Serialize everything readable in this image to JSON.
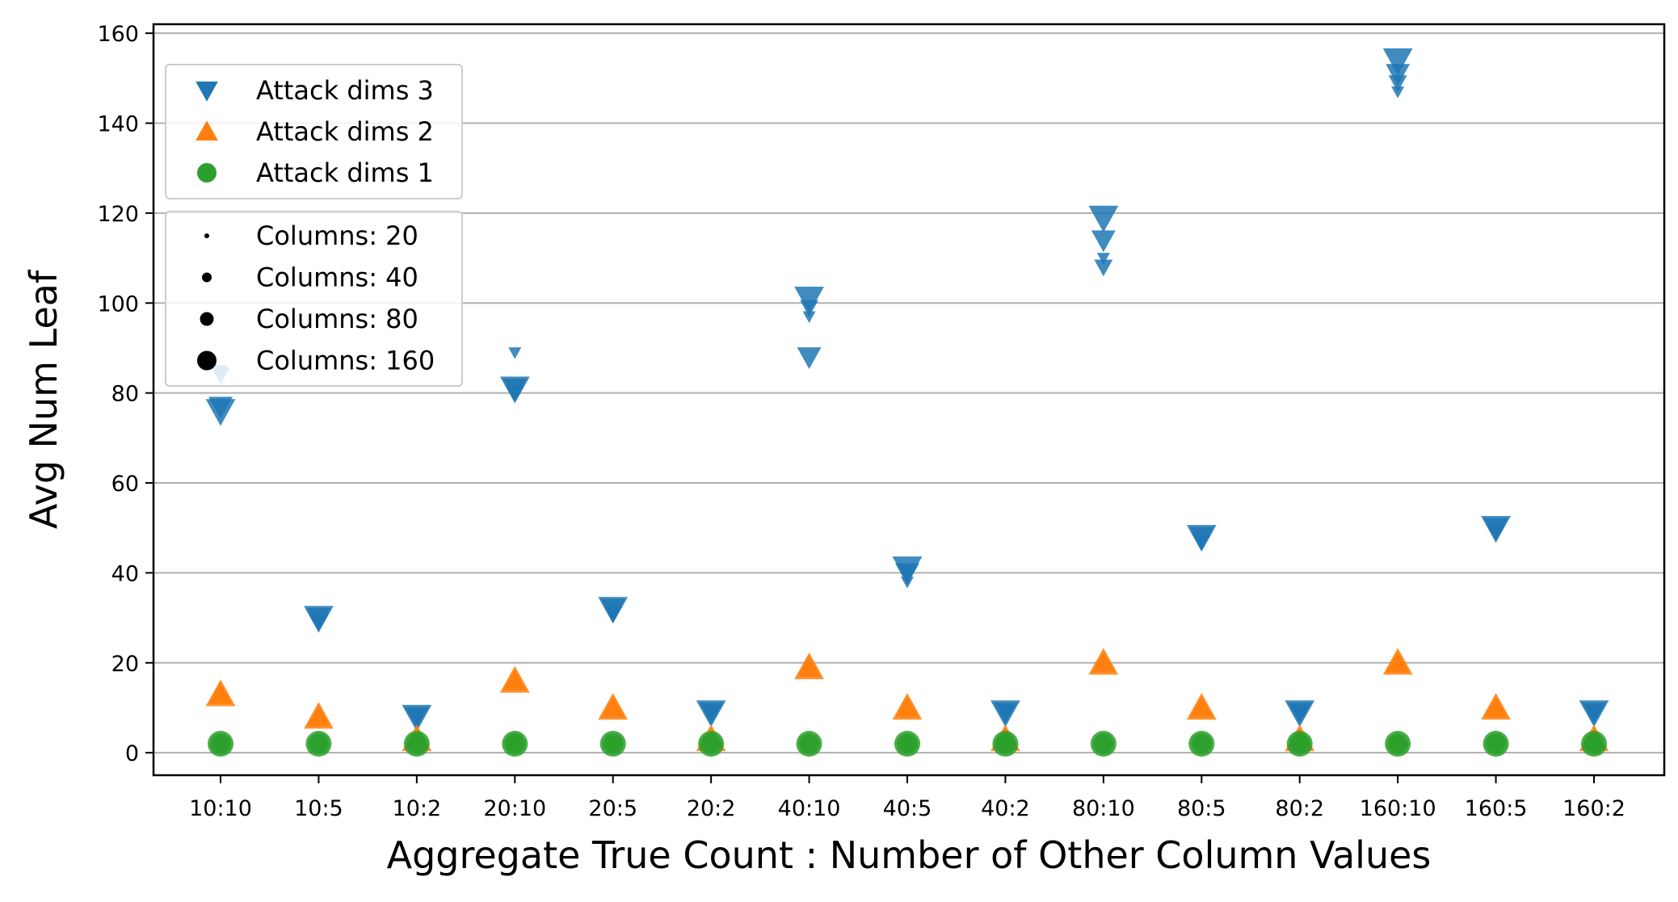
{
  "chart_data": {
    "type": "scatter",
    "title": "",
    "xlabel": "Aggregate True Count : Number of Other Column Values",
    "ylabel": "Avg Num Leaf",
    "categories": [
      "10:10",
      "10:5",
      "10:2",
      "20:10",
      "20:5",
      "20:2",
      "40:10",
      "40:5",
      "40:2",
      "80:10",
      "80:5",
      "80:2",
      "160:10",
      "160:5",
      "160:2"
    ],
    "ylim": [
      -5,
      162
    ],
    "yticks": [
      0,
      20,
      40,
      60,
      80,
      100,
      120,
      140,
      160
    ],
    "grid": "horizontal",
    "colors": {
      "attack_dims_3": "#1f77b4",
      "attack_dims_2": "#ff7f0e",
      "attack_dims_1": "#2ca02c",
      "size_legend": "#000000",
      "gridline": "#b0b0b0"
    },
    "legend": {
      "placement": "upper-left",
      "series_entries": [
        {
          "label": "Attack dims 3",
          "marker": "triangle-down",
          "color": "#1f77b4"
        },
        {
          "label": "Attack dims 2",
          "marker": "triangle-up",
          "color": "#ff7f0e"
        },
        {
          "label": "Attack dims 1",
          "marker": "circle",
          "color": "#2ca02c"
        }
      ],
      "size_entries": [
        {
          "label": "Columns: 20",
          "columns": 20
        },
        {
          "label": "Columns: 40",
          "columns": 40
        },
        {
          "label": "Columns: 80",
          "columns": 80
        },
        {
          "label": "Columns: 160",
          "columns": 160
        }
      ]
    },
    "series": [
      {
        "name": "Attack dims 3",
        "marker": "triangle-down",
        "color": "#1f77b4",
        "points": [
          [
            0,
            85,
            20
          ],
          [
            0,
            84,
            40
          ],
          [
            0,
            77,
            80
          ],
          [
            0,
            76,
            160
          ],
          [
            1,
            29,
            20
          ],
          [
            1,
            29,
            40
          ],
          [
            1,
            30,
            80
          ],
          [
            1,
            30,
            160
          ],
          [
            2,
            8,
            20
          ],
          [
            2,
            8,
            40
          ],
          [
            2,
            8,
            80
          ],
          [
            2,
            8,
            160
          ],
          [
            3,
            89,
            20
          ],
          [
            3,
            80,
            40
          ],
          [
            3,
            81,
            80
          ],
          [
            3,
            81,
            160
          ],
          [
            4,
            31,
            20
          ],
          [
            4,
            31,
            40
          ],
          [
            4,
            32,
            80
          ],
          [
            4,
            32,
            160
          ],
          [
            5,
            9,
            20
          ],
          [
            5,
            9,
            40
          ],
          [
            5,
            9,
            80
          ],
          [
            5,
            9,
            160
          ],
          [
            6,
            97,
            20
          ],
          [
            6,
            99,
            40
          ],
          [
            6,
            88,
            80
          ],
          [
            6,
            101,
            160
          ],
          [
            7,
            38,
            20
          ],
          [
            7,
            40,
            40
          ],
          [
            7,
            40,
            80
          ],
          [
            7,
            41,
            160
          ],
          [
            8,
            9,
            20
          ],
          [
            8,
            9,
            40
          ],
          [
            8,
            9,
            80
          ],
          [
            8,
            9,
            160
          ],
          [
            9,
            110,
            20
          ],
          [
            9,
            108,
            40
          ],
          [
            9,
            114,
            80
          ],
          [
            9,
            119,
            160
          ],
          [
            10,
            47,
            20
          ],
          [
            10,
            47,
            40
          ],
          [
            10,
            48,
            80
          ],
          [
            10,
            48,
            160
          ],
          [
            11,
            9,
            20
          ],
          [
            11,
            9,
            40
          ],
          [
            11,
            9,
            80
          ],
          [
            11,
            9,
            160
          ],
          [
            12,
            147,
            20
          ],
          [
            12,
            149,
            40
          ],
          [
            12,
            151,
            80
          ],
          [
            12,
            154,
            160
          ],
          [
            13,
            49,
            20
          ],
          [
            13,
            49,
            40
          ],
          [
            13,
            50,
            80
          ],
          [
            13,
            50,
            160
          ],
          [
            14,
            9,
            20
          ],
          [
            14,
            9,
            40
          ],
          [
            14,
            9,
            80
          ],
          [
            14,
            9,
            160
          ]
        ]
      },
      {
        "name": "Attack dims 2",
        "marker": "triangle-up",
        "color": "#ff7f0e",
        "points": [
          [
            0,
            13,
            20
          ],
          [
            0,
            13,
            40
          ],
          [
            0,
            13,
            80
          ],
          [
            0,
            13,
            160
          ],
          [
            1,
            8,
            20
          ],
          [
            1,
            8,
            40
          ],
          [
            1,
            8,
            80
          ],
          [
            1,
            8,
            160
          ],
          [
            2,
            3,
            20
          ],
          [
            2,
            3,
            40
          ],
          [
            2,
            3,
            80
          ],
          [
            2,
            3,
            160
          ],
          [
            3,
            16,
            20
          ],
          [
            3,
            16,
            40
          ],
          [
            3,
            16,
            80
          ],
          [
            3,
            16,
            160
          ],
          [
            4,
            10,
            20
          ],
          [
            4,
            10,
            40
          ],
          [
            4,
            10,
            80
          ],
          [
            4,
            10,
            160
          ],
          [
            5,
            3,
            20
          ],
          [
            5,
            3,
            40
          ],
          [
            5,
            3,
            80
          ],
          [
            5,
            3,
            160
          ],
          [
            6,
            19,
            20
          ],
          [
            6,
            19,
            40
          ],
          [
            6,
            19,
            80
          ],
          [
            6,
            19,
            160
          ],
          [
            7,
            10,
            20
          ],
          [
            7,
            10,
            40
          ],
          [
            7,
            10,
            80
          ],
          [
            7,
            10,
            160
          ],
          [
            8,
            3,
            20
          ],
          [
            8,
            3,
            40
          ],
          [
            8,
            3,
            80
          ],
          [
            8,
            3,
            160
          ],
          [
            9,
            20,
            20
          ],
          [
            9,
            20,
            40
          ],
          [
            9,
            20,
            80
          ],
          [
            9,
            20,
            160
          ],
          [
            10,
            10,
            20
          ],
          [
            10,
            10,
            40
          ],
          [
            10,
            10,
            80
          ],
          [
            10,
            10,
            160
          ],
          [
            11,
            3,
            20
          ],
          [
            11,
            3,
            40
          ],
          [
            11,
            3,
            80
          ],
          [
            11,
            3,
            160
          ],
          [
            12,
            20,
            20
          ],
          [
            12,
            20,
            40
          ],
          [
            12,
            20,
            80
          ],
          [
            12,
            20,
            160
          ],
          [
            13,
            10,
            20
          ],
          [
            13,
            10,
            40
          ],
          [
            13,
            10,
            80
          ],
          [
            13,
            10,
            160
          ],
          [
            14,
            3,
            20
          ],
          [
            14,
            3,
            40
          ],
          [
            14,
            3,
            80
          ],
          [
            14,
            3,
            160
          ]
        ]
      },
      {
        "name": "Attack dims 1",
        "marker": "circle",
        "color": "#2ca02c",
        "points": [
          [
            0,
            2,
            20
          ],
          [
            0,
            2,
            40
          ],
          [
            0,
            2,
            80
          ],
          [
            0,
            2,
            160
          ],
          [
            1,
            2,
            20
          ],
          [
            1,
            2,
            40
          ],
          [
            1,
            2,
            80
          ],
          [
            1,
            2,
            160
          ],
          [
            2,
            2,
            20
          ],
          [
            2,
            2,
            40
          ],
          [
            2,
            2,
            80
          ],
          [
            2,
            2,
            160
          ],
          [
            3,
            2,
            20
          ],
          [
            3,
            2,
            40
          ],
          [
            3,
            2,
            80
          ],
          [
            3,
            2,
            160
          ],
          [
            4,
            2,
            20
          ],
          [
            4,
            2,
            40
          ],
          [
            4,
            2,
            80
          ],
          [
            4,
            2,
            160
          ],
          [
            5,
            2,
            20
          ],
          [
            5,
            2,
            40
          ],
          [
            5,
            2,
            80
          ],
          [
            5,
            2,
            160
          ],
          [
            6,
            2,
            20
          ],
          [
            6,
            2,
            40
          ],
          [
            6,
            2,
            80
          ],
          [
            6,
            2,
            160
          ],
          [
            7,
            2,
            20
          ],
          [
            7,
            2,
            40
          ],
          [
            7,
            2,
            80
          ],
          [
            7,
            2,
            160
          ],
          [
            8,
            2,
            20
          ],
          [
            8,
            2,
            40
          ],
          [
            8,
            2,
            80
          ],
          [
            8,
            2,
            160
          ],
          [
            9,
            2,
            20
          ],
          [
            9,
            2,
            40
          ],
          [
            9,
            2,
            80
          ],
          [
            9,
            2,
            160
          ],
          [
            10,
            2,
            20
          ],
          [
            10,
            2,
            40
          ],
          [
            10,
            2,
            80
          ],
          [
            10,
            2,
            160
          ],
          [
            11,
            2,
            20
          ],
          [
            11,
            2,
            40
          ],
          [
            11,
            2,
            80
          ],
          [
            11,
            2,
            160
          ],
          [
            12,
            2,
            20
          ],
          [
            12,
            2,
            40
          ],
          [
            12,
            2,
            80
          ],
          [
            12,
            2,
            160
          ],
          [
            13,
            2,
            20
          ],
          [
            13,
            2,
            40
          ],
          [
            13,
            2,
            80
          ],
          [
            13,
            2,
            160
          ],
          [
            14,
            2,
            20
          ],
          [
            14,
            2,
            40
          ],
          [
            14,
            2,
            80
          ],
          [
            14,
            2,
            160
          ]
        ]
      }
    ]
  }
}
